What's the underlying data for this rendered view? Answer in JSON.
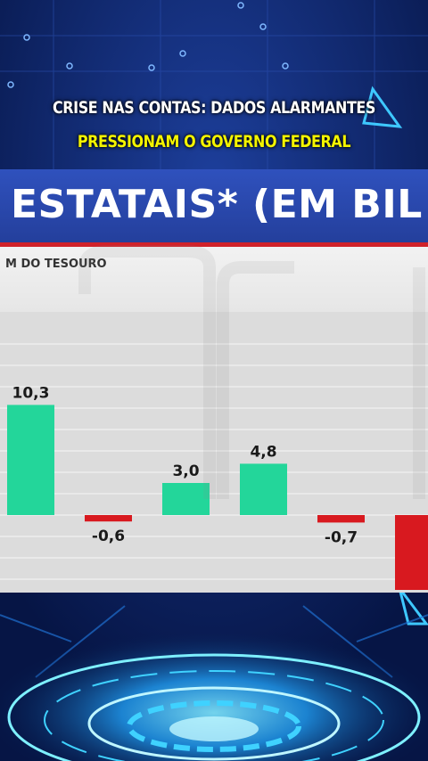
{
  "header": {
    "line1": "CRISE NAS CONTAS: DADOS ALARMANTES",
    "line2": "PRESSIONAM O GOVERNO FEDERAL"
  },
  "banner": {
    "title": "ESTATAIS* (EM BIL"
  },
  "source": {
    "text": "M DO TESOURO"
  },
  "colors": {
    "positive": "#23d69a",
    "negative": "#d8191f",
    "banner": "#2b4bb2",
    "accent_line": "#d0222a"
  },
  "chart_data": {
    "type": "bar",
    "categories": [
      "",
      "",
      "",
      "",
      "",
      ""
    ],
    "values": [
      10.3,
      -0.6,
      3.0,
      4.8,
      -0.7,
      -7.0
    ],
    "value_labels": [
      "10,3",
      "-0,6",
      "3,0",
      "4,8",
      "-0,7",
      ""
    ],
    "title": "ESTATAIS* (EM BIL",
    "xlabel": "",
    "ylabel": "",
    "grid": true
  }
}
